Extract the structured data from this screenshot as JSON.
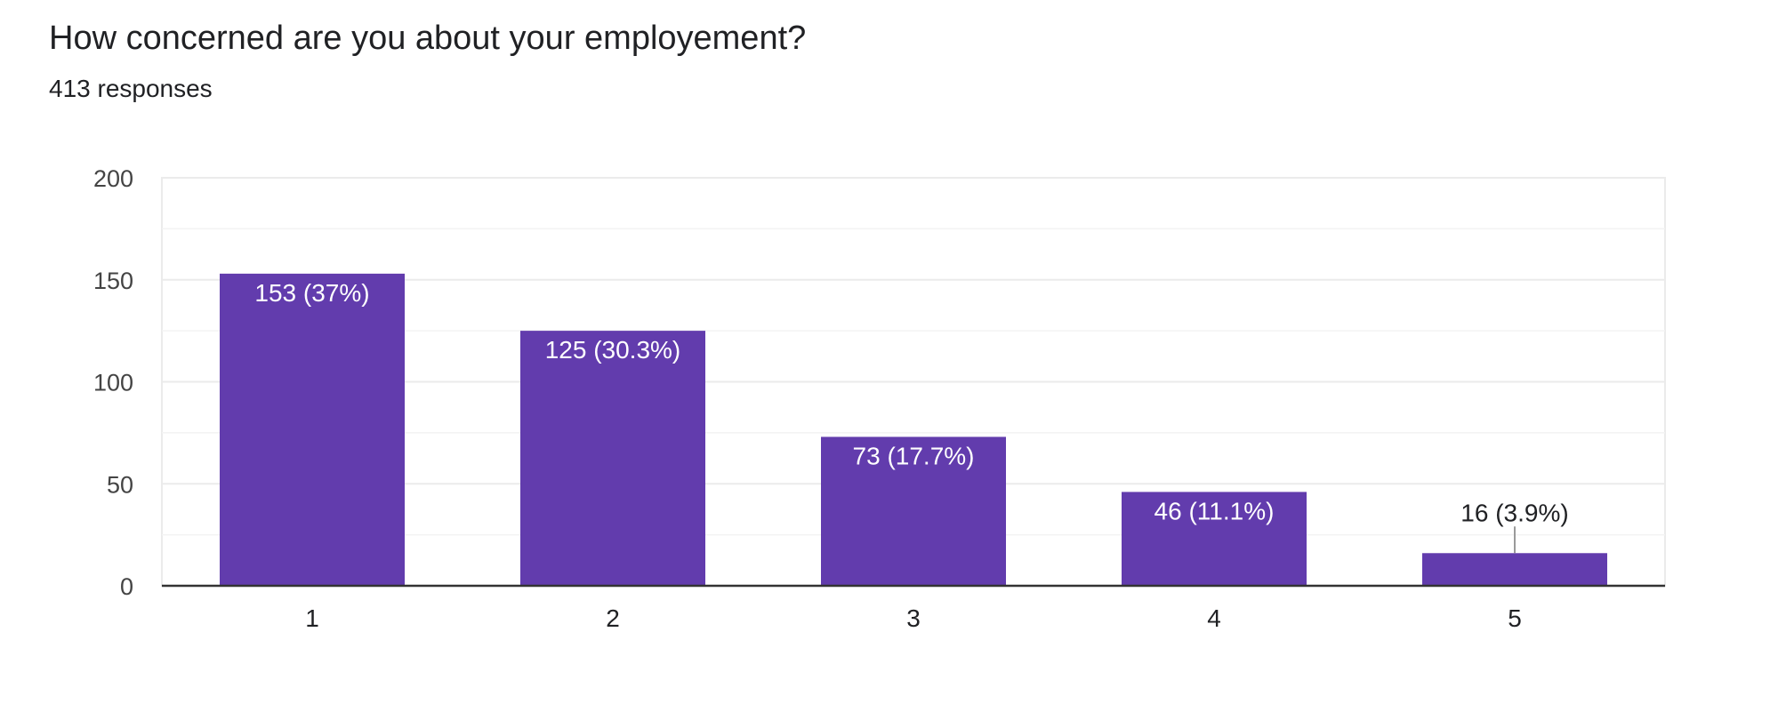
{
  "header": {
    "title": "How concerned are you about your employement?",
    "subtitle": "413 responses"
  },
  "colors": {
    "bar": "#623cad",
    "axis": "#333333",
    "gridline": "#ebebeb",
    "label_inside": "#ffffff",
    "label_outside": "#202124",
    "tick_label": "#444444"
  },
  "chart_data": {
    "type": "bar",
    "title": "",
    "xlabel": "",
    "ylabel": "",
    "categories": [
      "1",
      "2",
      "3",
      "4",
      "5"
    ],
    "values": [
      153,
      125,
      73,
      46,
      16
    ],
    "data_labels": [
      "153 (37%)",
      "125 (30.3%)",
      "73 (17.7%)",
      "46 (11.1%)",
      "16 (3.9%)"
    ],
    "ylim": [
      0,
      200
    ],
    "yticks": [
      0,
      50,
      100,
      150,
      200
    ],
    "ytick_labels": [
      "0",
      "50",
      "100",
      "150",
      "200"
    ],
    "minor_gridlines": [
      25,
      75,
      125,
      175
    ],
    "grid": true,
    "legend": "none"
  }
}
